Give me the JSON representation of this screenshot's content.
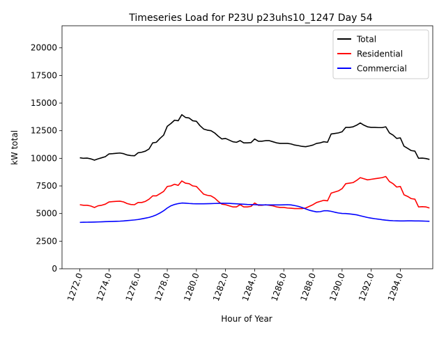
{
  "chart_data": {
    "type": "line",
    "title": "Timeseries Load for P23U p23uhs10_1247  Day 54",
    "xlabel": "Hour of Year",
    "ylabel": "kW total",
    "xlim": [
      1270.775,
      1296.225
    ],
    "ylim": [
      0,
      22000
    ],
    "x_ticks": [
      1272,
      1274,
      1276,
      1278,
      1280,
      1282,
      1284,
      1286,
      1288,
      1290,
      1292,
      1294
    ],
    "x_tick_labels": [
      "1272.0",
      "1274.0",
      "1276.0",
      "1278.0",
      "1280.0",
      "1282.0",
      "1284.0",
      "1286.0",
      "1288.0",
      "1290.0",
      "1292.0",
      "1294.0"
    ],
    "y_ticks": [
      0,
      2500,
      5000,
      7500,
      10000,
      12500,
      15000,
      17500,
      20000
    ],
    "y_tick_labels": [
      "0",
      "2500",
      "5000",
      "7500",
      "10000",
      "12500",
      "15000",
      "17500",
      "20000"
    ],
    "x_start": 1272,
    "x_step": 0.25,
    "legend_position": "top-right",
    "series": [
      {
        "name": "Total",
        "color": "#000000",
        "values": [
          10050,
          10000,
          10020,
          9950,
          9830,
          9950,
          10050,
          10150,
          10400,
          10420,
          10450,
          10480,
          10420,
          10300,
          10250,
          10230,
          10500,
          10550,
          10650,
          10850,
          11400,
          11450,
          11800,
          12100,
          12900,
          13150,
          13450,
          13400,
          13950,
          13700,
          13650,
          13400,
          13350,
          12950,
          12650,
          12550,
          12500,
          12300,
          12000,
          11750,
          11800,
          11650,
          11500,
          11450,
          11600,
          11400,
          11400,
          11420,
          11750,
          11550,
          11550,
          11600,
          11600,
          11500,
          11400,
          11350,
          11350,
          11350,
          11300,
          11200,
          11150,
          11080,
          11050,
          11120,
          11200,
          11350,
          11400,
          11500,
          11450,
          12200,
          12250,
          12300,
          12400,
          12800,
          12800,
          12850,
          13000,
          13200,
          13000,
          12850,
          12800,
          12800,
          12780,
          12780,
          12850,
          12300,
          12100,
          11800,
          11850,
          11100,
          10900,
          10700,
          10650,
          10000,
          10020,
          9980,
          9900
        ]
      },
      {
        "name": "Residential",
        "color": "#ff0000",
        "values": [
          5800,
          5750,
          5750,
          5680,
          5550,
          5700,
          5750,
          5850,
          6050,
          6080,
          6100,
          6120,
          6050,
          5900,
          5820,
          5800,
          6000,
          6000,
          6100,
          6300,
          6600,
          6600,
          6800,
          7000,
          7450,
          7500,
          7650,
          7550,
          7950,
          7750,
          7700,
          7500,
          7450,
          7100,
          6750,
          6650,
          6600,
          6400,
          6100,
          5850,
          5800,
          5700,
          5600,
          5600,
          5800,
          5600,
          5600,
          5650,
          5950,
          5750,
          5750,
          5800,
          5750,
          5700,
          5600,
          5550,
          5550,
          5500,
          5480,
          5450,
          5450,
          5450,
          5500,
          5650,
          5800,
          6000,
          6100,
          6200,
          6150,
          6850,
          6950,
          7050,
          7250,
          7700,
          7750,
          7800,
          8000,
          8250,
          8150,
          8050,
          8100,
          8150,
          8200,
          8250,
          8350,
          7900,
          7700,
          7400,
          7450,
          6700,
          6550,
          6350,
          6300,
          5600,
          5620,
          5600,
          5500
        ]
      },
      {
        "name": "Commercial",
        "color": "#0000ff",
        "values": [
          4200,
          4210,
          4215,
          4220,
          4230,
          4240,
          4250,
          4265,
          4275,
          4285,
          4300,
          4310,
          4330,
          4360,
          4390,
          4420,
          4460,
          4520,
          4580,
          4650,
          4750,
          4880,
          5050,
          5250,
          5500,
          5700,
          5820,
          5900,
          5950,
          5940,
          5910,
          5890,
          5880,
          5880,
          5880,
          5890,
          5900,
          5910,
          5920,
          5930,
          5930,
          5920,
          5900,
          5880,
          5860,
          5840,
          5820,
          5810,
          5800,
          5790,
          5780,
          5780,
          5780,
          5780,
          5780,
          5780,
          5790,
          5800,
          5780,
          5720,
          5650,
          5550,
          5420,
          5300,
          5220,
          5150,
          5170,
          5250,
          5250,
          5200,
          5120,
          5050,
          5010,
          5000,
          4970,
          4930,
          4880,
          4800,
          4720,
          4640,
          4580,
          4530,
          4490,
          4440,
          4400,
          4370,
          4350,
          4340,
          4330,
          4330,
          4340,
          4340,
          4330,
          4330,
          4320,
          4310,
          4300
        ]
      }
    ]
  }
}
